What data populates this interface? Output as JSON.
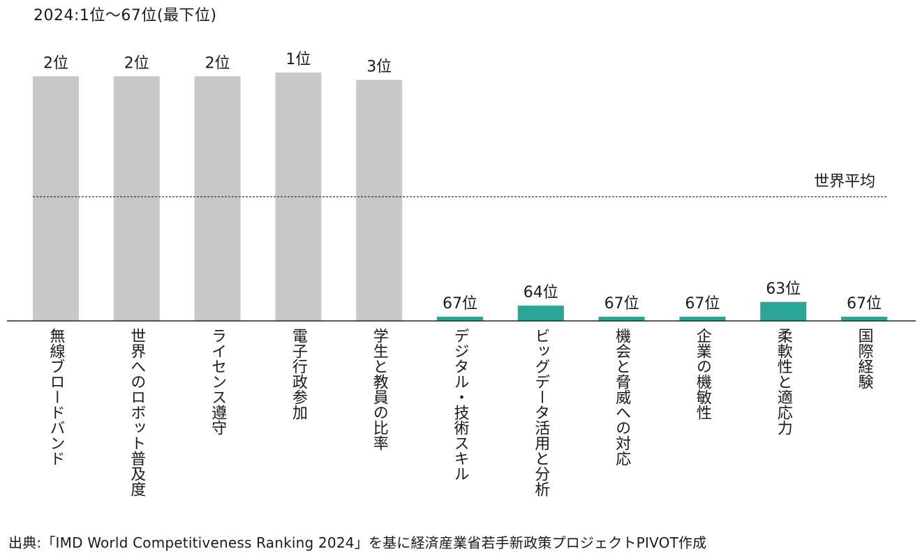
{
  "chart_data": {
    "type": "bar",
    "title": "2024:1位～67位(最下位)",
    "categories": [
      "無線ブロードバンド",
      "世界へのロボット普及度",
      "ライセンス遵守",
      "電子行政参加",
      "学生と教員の比率",
      "デジタル・技術スキル",
      "ビッグデータ活用と分析",
      "機会と脅威への対応",
      "企業の機敏性",
      "柔軟性と適応力",
      "国際経験"
    ],
    "values": [
      2,
      2,
      2,
      1,
      3,
      67,
      64,
      67,
      67,
      63,
      67
    ],
    "data_labels": [
      "2位",
      "2位",
      "2位",
      "1位",
      "3位",
      "67位",
      "64位",
      "67位",
      "67位",
      "63位",
      "67位"
    ],
    "rank_range": [
      1,
      67
    ],
    "reference_line": {
      "label": "世界平均",
      "style": "dashed"
    },
    "colors": {
      "strength": "#c8c8c8",
      "weakness": "#2aa596",
      "axis": "#222222",
      "reference": "#333333"
    },
    "source": "出典:「IMD World Competitiveness Ranking 2024」を基に経済産業省若手新政策プロジェクトPIVOT作成"
  }
}
